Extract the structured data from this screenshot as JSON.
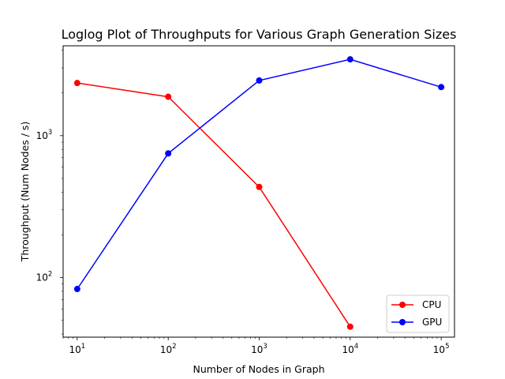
{
  "chart_data": {
    "type": "line",
    "title": "Loglog Plot of Throughputs for Various Graph Generation Sizes",
    "xlabel": "Number of Nodes in Graph",
    "ylabel": "Throughput (Num Nodes / s)",
    "xscale": "log",
    "yscale": "log",
    "xlim": [
      7,
      140000
    ],
    "ylim": [
      38,
      4300
    ],
    "x_ticks": [
      {
        "value": 10,
        "base": "10",
        "exp": "1"
      },
      {
        "value": 100,
        "base": "10",
        "exp": "2"
      },
      {
        "value": 1000,
        "base": "10",
        "exp": "3"
      },
      {
        "value": 10000,
        "base": "10",
        "exp": "4"
      },
      {
        "value": 100000,
        "base": "10",
        "exp": "5"
      }
    ],
    "y_ticks": [
      {
        "value": 100,
        "base": "10",
        "exp": "2"
      },
      {
        "value": 1000,
        "base": "10",
        "exp": "3"
      }
    ],
    "grid": false,
    "legend_position": "bottom-right",
    "series": [
      {
        "name": "CPU",
        "color": "#ff0000",
        "marker": "circle",
        "x": [
          10,
          100,
          1000,
          10000
        ],
        "y": [
          2350,
          1880,
          435,
          45
        ]
      },
      {
        "name": "GPU",
        "color": "#0000ff",
        "marker": "circle",
        "x": [
          10,
          100,
          1000,
          10000,
          100000
        ],
        "y": [
          83,
          750,
          2450,
          3450,
          2200
        ]
      }
    ]
  }
}
